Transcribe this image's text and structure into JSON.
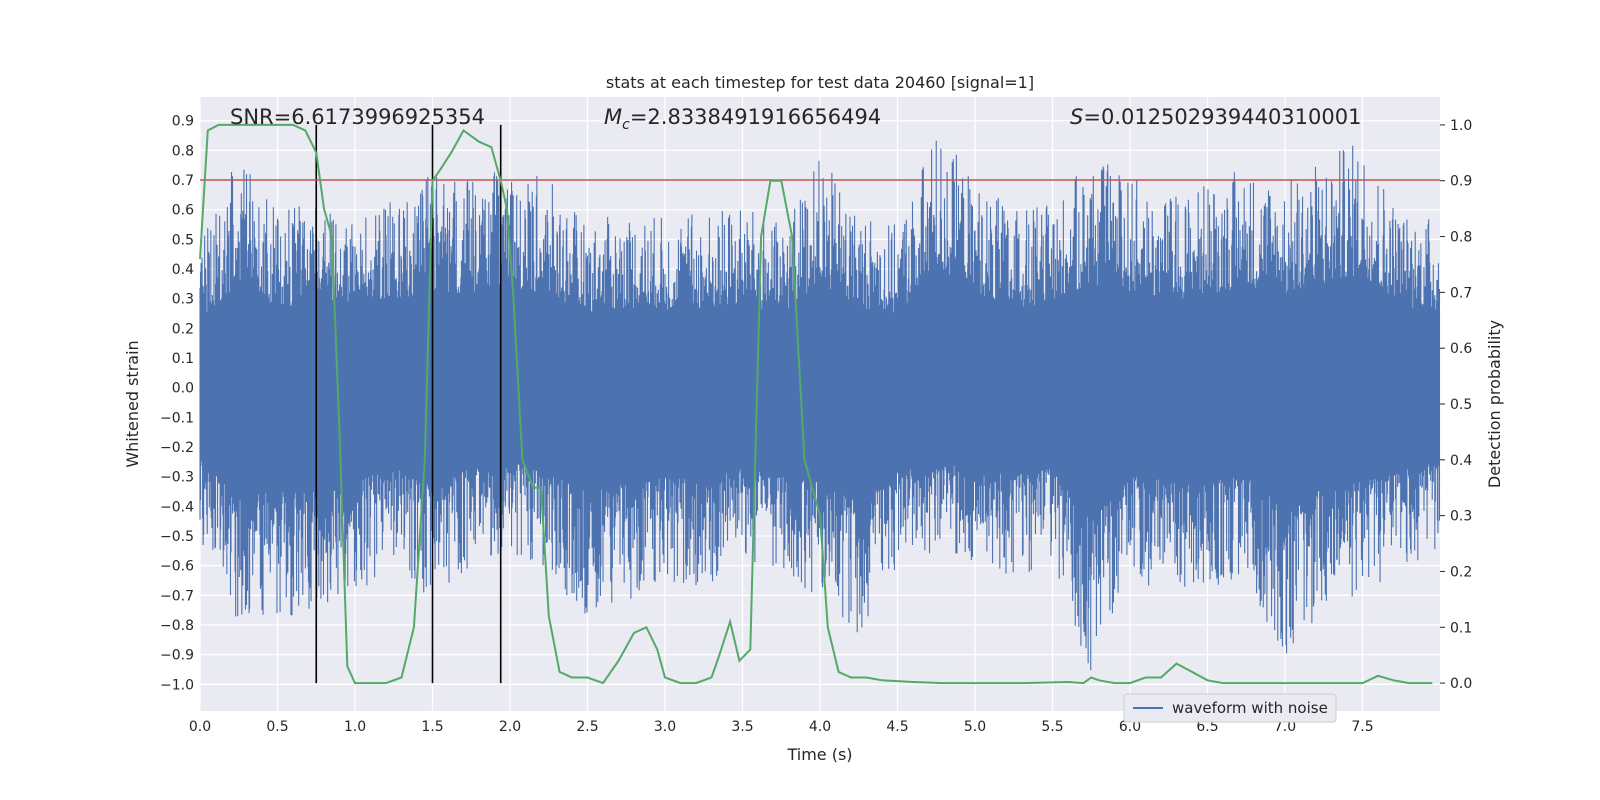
{
  "chart_data": {
    "type": "line",
    "title": "stats at each timestep for test data 20460 [signal=1]",
    "xlabel": "Time (s)",
    "ylabel": "Whitened strain",
    "y2label": "Detection probability",
    "xlim": [
      0.0,
      8.0
    ],
    "ylim": [
      -1.09,
      0.98
    ],
    "y2lim": [
      -0.05,
      1.05
    ],
    "x_ticks": [
      0.0,
      0.5,
      1.0,
      1.5,
      2.0,
      2.5,
      3.0,
      3.5,
      4.0,
      4.5,
      5.0,
      5.5,
      6.0,
      6.5,
      7.0,
      7.5
    ],
    "x_tick_labels": [
      "0.0",
      "0.5",
      "1.0",
      "1.5",
      "2.0",
      "2.5",
      "3.0",
      "3.5",
      "4.0",
      "4.5",
      "5.0",
      "5.5",
      "6.0",
      "6.5",
      "7.0",
      "7.5"
    ],
    "y_ticks": [
      0.9,
      0.8,
      0.7,
      0.6,
      0.5,
      0.4,
      0.3,
      0.2,
      0.1,
      0.0,
      -0.1,
      -0.2,
      -0.3,
      -0.4,
      -0.5,
      -0.6,
      -0.7,
      -0.8,
      -0.9,
      -1.0
    ],
    "y_tick_labels": [
      "0.9",
      "0.8",
      "0.7",
      "0.6",
      "0.5",
      "0.4",
      "0.3",
      "0.2",
      "0.1",
      "0.0",
      "−0.1",
      "−0.2",
      "−0.3",
      "−0.4",
      "−0.5",
      "−0.6",
      "−0.7",
      "−0.8",
      "−0.9",
      "−1.0"
    ],
    "y2_ticks": [
      1.0,
      0.9,
      0.8,
      0.7,
      0.6,
      0.5,
      0.4,
      0.3,
      0.2,
      0.1,
      0.0
    ],
    "y2_tick_labels": [
      "1.0",
      "0.9",
      "0.8",
      "0.7",
      "0.6",
      "0.5",
      "0.4",
      "0.3",
      "0.2",
      "0.1",
      "0.0"
    ],
    "annotations": {
      "snr": "SNR=6.6173996925354",
      "mc_symbol": "M",
      "mc_sub": "c",
      "mc_value": "=2.8338491916656494",
      "s_symbol": "S",
      "s_value": "=0.012502939440310001"
    },
    "threshold": 0.7,
    "vertical_lines_x": [
      0.75,
      1.5,
      1.94
    ],
    "legend": {
      "label": "waveform with noise",
      "location": "lower right"
    },
    "series": [
      {
        "name": "waveform with noise",
        "color": "#4c72b0",
        "axis": "left",
        "envelope": {
          "x": [
            0.0,
            0.25,
            0.5,
            0.75,
            1.0,
            1.25,
            1.5,
            1.75,
            2.0,
            2.25,
            2.5,
            2.75,
            3.0,
            3.25,
            3.5,
            3.75,
            4.0,
            4.25,
            4.5,
            4.75,
            5.0,
            5.25,
            5.5,
            5.75,
            6.0,
            6.25,
            6.5,
            6.75,
            7.0,
            7.25,
            7.5,
            7.75,
            8.0
          ],
          "upper": [
            0.5,
            0.78,
            0.6,
            0.62,
            0.55,
            0.65,
            0.72,
            0.7,
            0.75,
            0.7,
            0.55,
            0.6,
            0.58,
            0.6,
            0.62,
            0.55,
            0.78,
            0.6,
            0.55,
            0.88,
            0.7,
            0.6,
            0.62,
            0.78,
            0.72,
            0.65,
            0.7,
            0.75,
            0.7,
            0.78,
            0.85,
            0.6,
            0.58
          ],
          "lower": [
            -0.52,
            -0.8,
            -0.78,
            -0.75,
            -0.7,
            -0.6,
            -0.72,
            -0.6,
            -0.55,
            -0.65,
            -0.77,
            -0.72,
            -0.65,
            -0.7,
            -0.6,
            -0.65,
            -0.7,
            -0.84,
            -0.6,
            -0.55,
            -0.6,
            -0.65,
            -0.6,
            -1.0,
            -0.65,
            -0.7,
            -0.7,
            -0.65,
            -0.92,
            -0.75,
            -0.7,
            -0.62,
            -0.55
          ]
        }
      },
      {
        "name": "detection probability",
        "color": "#55a868",
        "axis": "right",
        "x": [
          0.0,
          0.05,
          0.12,
          0.2,
          0.3,
          0.4,
          0.5,
          0.6,
          0.68,
          0.75,
          0.8,
          0.85,
          0.9,
          0.95,
          1.0,
          1.1,
          1.2,
          1.3,
          1.38,
          1.45,
          1.5,
          1.55,
          1.62,
          1.7,
          1.8,
          1.88,
          1.94,
          1.98,
          2.02,
          2.08,
          2.15,
          2.2,
          2.25,
          2.32,
          2.4,
          2.5,
          2.6,
          2.7,
          2.8,
          2.88,
          2.95,
          3.0,
          3.1,
          3.2,
          3.3,
          3.35,
          3.42,
          3.48,
          3.55,
          3.62,
          3.68,
          3.75,
          3.82,
          3.9,
          3.95,
          4.0,
          4.05,
          4.12,
          4.2,
          4.3,
          4.4,
          4.6,
          4.8,
          5.0,
          5.3,
          5.6,
          5.7,
          5.75,
          5.8,
          5.9,
          6.0,
          6.1,
          6.2,
          6.3,
          6.4,
          6.5,
          6.6,
          6.8,
          7.0,
          7.2,
          7.5,
          7.6,
          7.7,
          7.8,
          7.95
        ],
        "y": [
          0.76,
          0.99,
          1.0,
          1.0,
          1.0,
          1.0,
          1.0,
          1.0,
          0.99,
          0.95,
          0.85,
          0.8,
          0.45,
          0.03,
          0.0,
          0.0,
          0.0,
          0.01,
          0.1,
          0.4,
          0.9,
          0.92,
          0.95,
          0.99,
          0.97,
          0.96,
          0.9,
          0.85,
          0.7,
          0.4,
          0.35,
          0.35,
          0.12,
          0.02,
          0.01,
          0.01,
          0.0,
          0.04,
          0.09,
          0.1,
          0.06,
          0.01,
          0.0,
          0.0,
          0.01,
          0.05,
          0.11,
          0.04,
          0.06,
          0.8,
          0.9,
          0.9,
          0.8,
          0.4,
          0.35,
          0.3,
          0.1,
          0.02,
          0.01,
          0.01,
          0.005,
          0.002,
          0.0,
          0.0,
          0.0,
          0.002,
          0.0,
          0.01,
          0.005,
          0.0,
          0.0,
          0.01,
          0.01,
          0.035,
          0.02,
          0.005,
          0.0,
          0.0,
          0.0,
          0.0,
          0.0,
          0.013,
          0.005,
          0.0,
          0.0
        ]
      },
      {
        "name": "threshold",
        "color": "#c44e52",
        "axis": "left",
        "y": 0.7
      }
    ]
  }
}
